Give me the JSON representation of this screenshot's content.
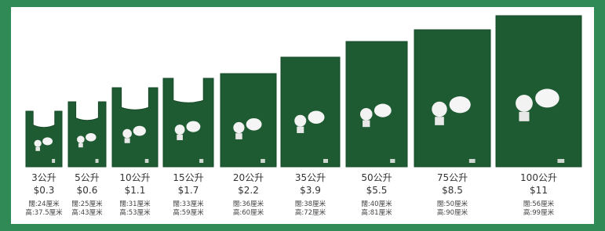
{
  "items": [
    {
      "volume": "3公升",
      "price": "$0.3",
      "width": "闊:24厘米",
      "height": "高:37.5厘米"
    },
    {
      "volume": "5公升",
      "price": "$0.6",
      "width": "闊:25厘米",
      "height": "高:43厘米"
    },
    {
      "volume": "10公升",
      "price": "$1.1",
      "width": "闊:31厘米",
      "height": "高:53厘米"
    },
    {
      "volume": "15公升",
      "price": "$1.7",
      "width": "闊:33厘米",
      "height": "高:59厘米"
    },
    {
      "volume": "20公升",
      "price": "$2.2",
      "width": "闊:36厘米",
      "height": "高:60厘米"
    },
    {
      "volume": "35公升",
      "price": "$3.9",
      "width": "闊:38厘米",
      "height": "高:72厘米"
    },
    {
      "volume": "50公升",
      "price": "$5.5",
      "width": "闊:40厘米",
      "height": "高:81厘米"
    },
    {
      "volume": "75公升",
      "price": "$8.5",
      "width": "闊:50厘米",
      "height": "高:90厘米"
    },
    {
      "volume": "100公升",
      "price": "$11",
      "width": "闊:56厘米",
      "height": "高:99厘米"
    }
  ]
}
